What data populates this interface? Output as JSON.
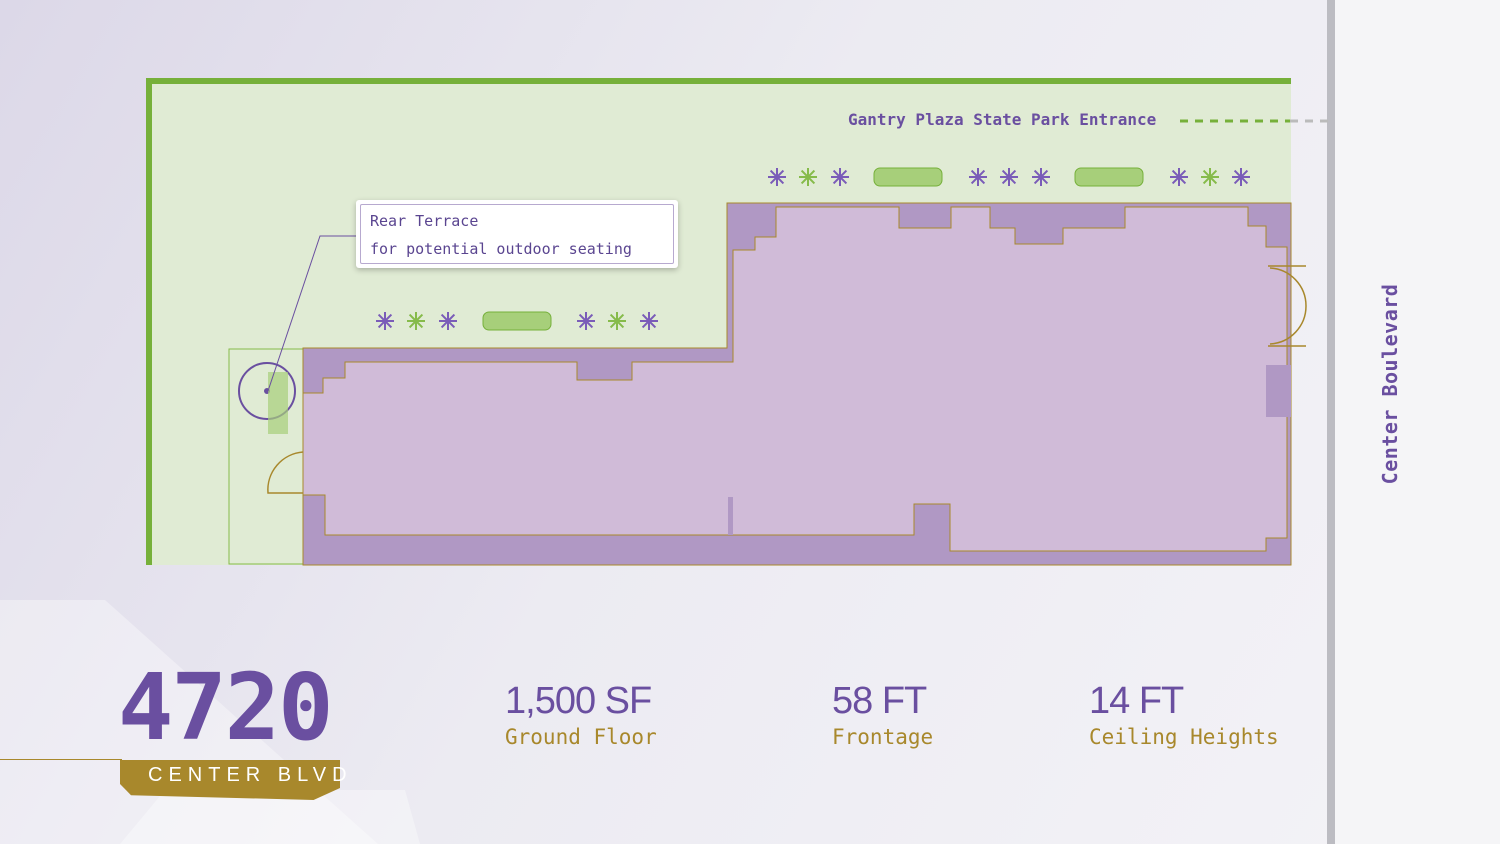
{
  "address": {
    "number": "4720",
    "street": "CENTER BLVD"
  },
  "plan": {
    "park_entrance_label": "Gantry Plaza State Park Entrance",
    "street_label": "Center Boulevard",
    "callout": {
      "title": "Rear Terrace",
      "subtitle": "for potential outdoor seating"
    }
  },
  "stats": [
    {
      "value": "1,500 SF",
      "label": "Ground Floor"
    },
    {
      "value": "58 FT",
      "label": "Frontage"
    },
    {
      "value": "14 FT",
      "label": "Ceiling Heights"
    }
  ],
  "colors": {
    "brand_purple": "#6a4fa0",
    "gold": "#a8882c",
    "lawn": "#e0ebd4",
    "lawn_border": "#76b03a",
    "wall": "#b098c4",
    "floor": "#d0bbd8"
  }
}
